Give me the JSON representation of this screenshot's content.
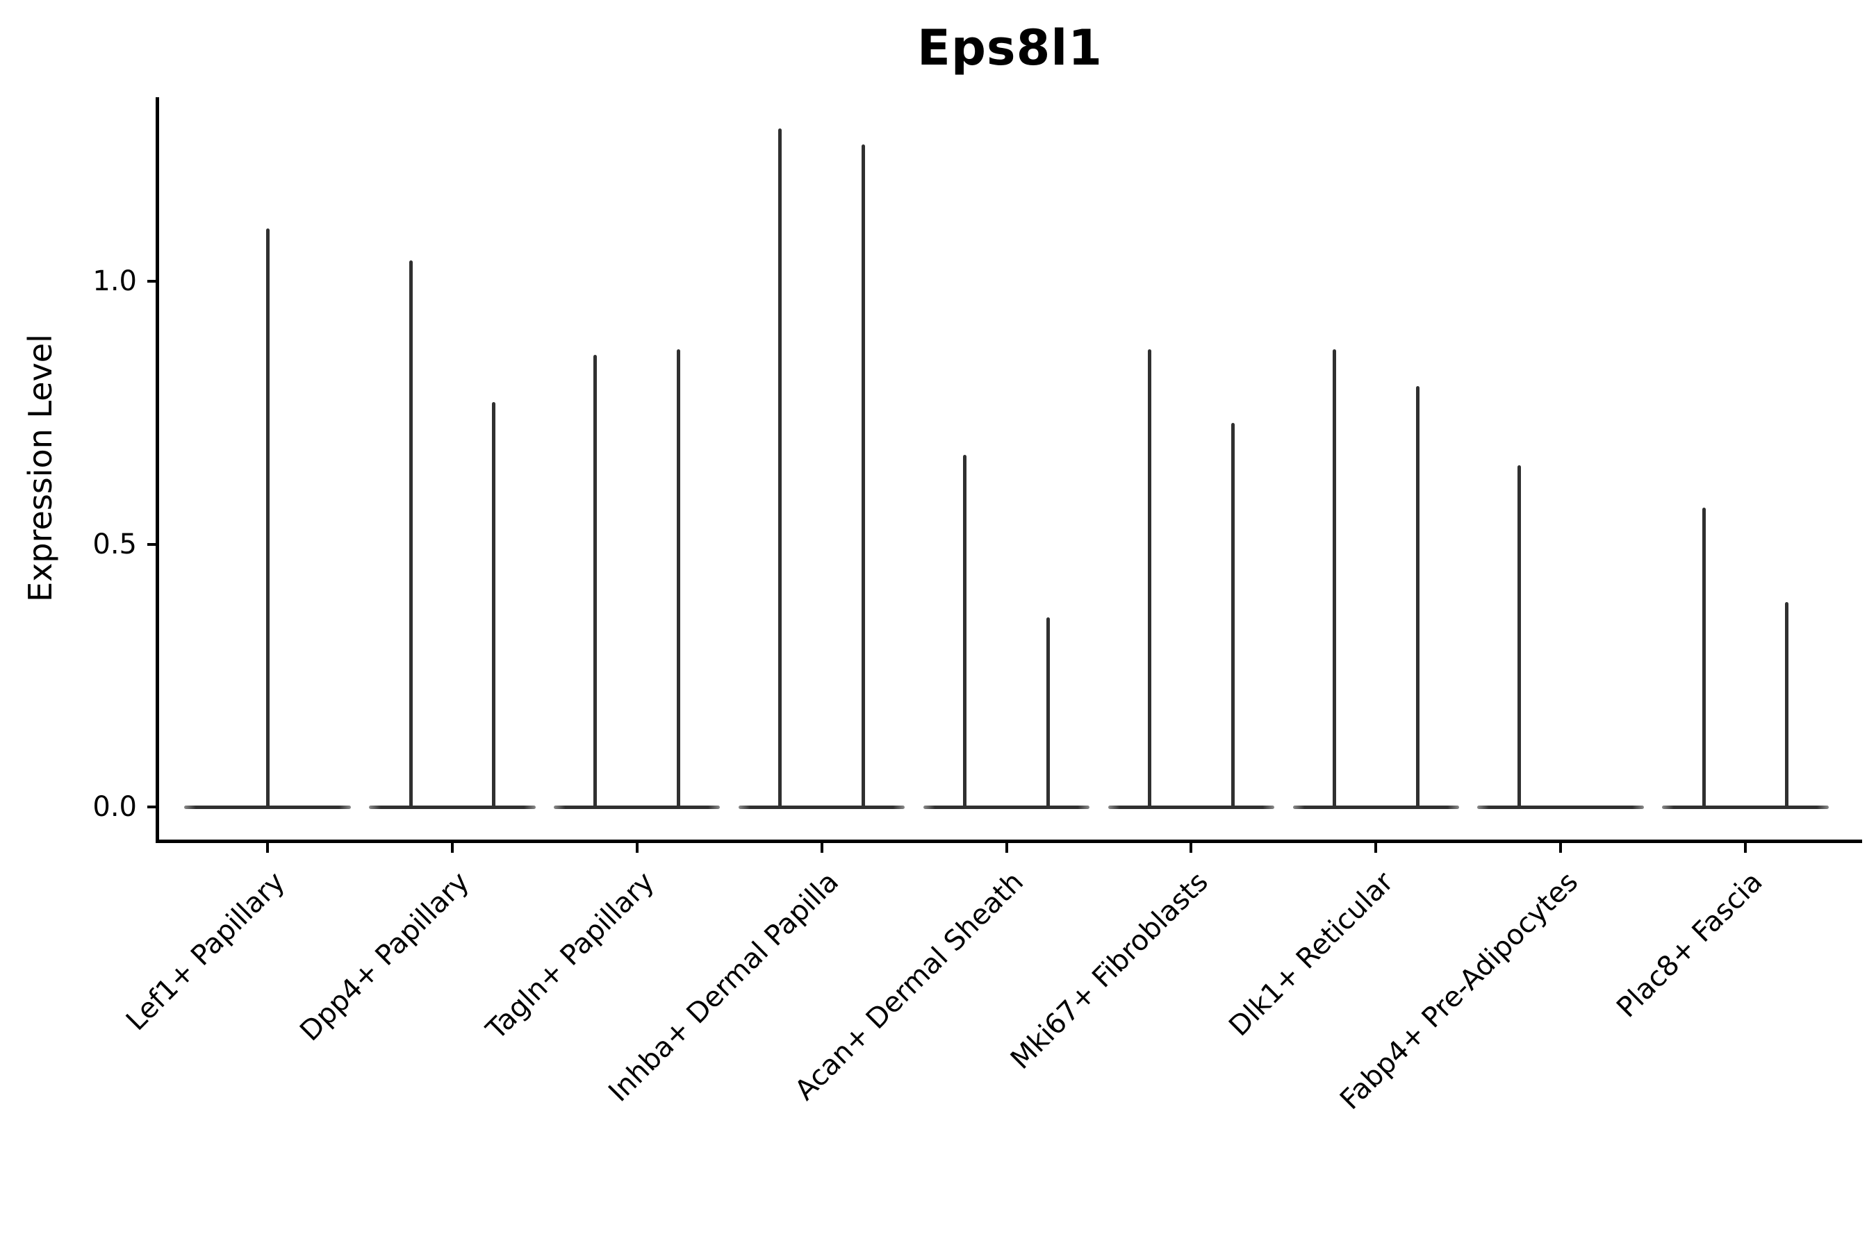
{
  "chart_data": {
    "type": "violin",
    "title": "Eps8l1",
    "xlabel": "",
    "ylabel": "Expression Level",
    "ytick_labels": [
      "0.0",
      "0.5",
      "1.0"
    ],
    "ytick_values": [
      0.0,
      0.5,
      1.0
    ],
    "ylim": [
      -0.062,
      1.35
    ],
    "grid": false,
    "legend": "none",
    "categories": [
      "Lef1+ Papillary",
      "Dpp4+ Papillary",
      "Tagln+ Papillary",
      "Inhba+ Dermal Papilla",
      "Acan+ Dermal Sheath",
      "Mki67+ Fibroblasts",
      "Dlk1+ Reticular",
      "Fabp4+ Pre-Adipocytes",
      "Plac8+ Fascia"
    ],
    "baseline_value": 0.0,
    "baseline_halfwidth_frac": 0.45,
    "violins": [
      {
        "category": "Lef1+ Papillary",
        "spikes": [
          {
            "offset": 0.0,
            "max": 1.1
          }
        ]
      },
      {
        "category": "Dpp4+ Papillary",
        "spikes": [
          {
            "offset": -0.225,
            "max": 1.04
          },
          {
            "offset": 0.225,
            "max": 0.77
          }
        ]
      },
      {
        "category": "Tagln+ Papillary",
        "spikes": [
          {
            "offset": -0.225,
            "max": 0.86
          },
          {
            "offset": 0.225,
            "max": 0.87
          }
        ]
      },
      {
        "category": "Inhba+ Dermal Papilla",
        "spikes": [
          {
            "offset": -0.225,
            "max": 1.29
          },
          {
            "offset": 0.225,
            "max": 1.26
          }
        ]
      },
      {
        "category": "Acan+ Dermal Sheath",
        "spikes": [
          {
            "offset": -0.225,
            "max": 0.67
          },
          {
            "offset": 0.225,
            "max": 0.36
          }
        ]
      },
      {
        "category": "Mki67+ Fibroblasts",
        "spikes": [
          {
            "offset": -0.225,
            "max": 0.87
          },
          {
            "offset": 0.225,
            "max": 0.73
          }
        ]
      },
      {
        "category": "Dlk1+ Reticular",
        "spikes": [
          {
            "offset": -0.225,
            "max": 0.87
          },
          {
            "offset": 0.225,
            "max": 0.8
          }
        ]
      },
      {
        "category": "Fabp4+ Pre-Adipocytes",
        "spikes": [
          {
            "offset": -0.225,
            "max": 0.65
          }
        ]
      },
      {
        "category": "Plac8+ Fascia",
        "spikes": [
          {
            "offset": -0.225,
            "max": 0.57
          },
          {
            "offset": 0.225,
            "max": 0.39
          }
        ]
      }
    ],
    "colors": {
      "violin": "#303030",
      "violin_tip": "#8a8a8a",
      "axis": "#000000",
      "background": "#ffffff"
    }
  }
}
